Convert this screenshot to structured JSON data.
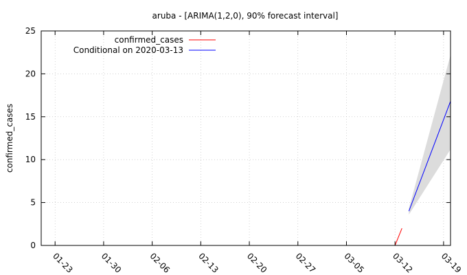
{
  "chart_data": {
    "type": "line",
    "title": "aruba -  [ARIMA(1,2,0), 90% forecast interval]",
    "xlabel": "",
    "ylabel": "confirmed_cases",
    "x_ticks": [
      "01-23",
      "01-30",
      "02-06",
      "02-13",
      "02-20",
      "02-27",
      "03-05",
      "03-12",
      "03-19"
    ],
    "x_range": [
      "2020-01-21",
      "2020-03-20"
    ],
    "ylim": [
      0,
      25
    ],
    "y_ticks": [
      0,
      5,
      10,
      15,
      20,
      25
    ],
    "grid": true,
    "legend_position": "top-left",
    "series": [
      {
        "name": "confirmed_cases",
        "color": "#ff0000",
        "points": [
          {
            "x": "2020-03-12",
            "y": 0
          },
          {
            "x": "2020-03-13",
            "y": 2
          }
        ]
      },
      {
        "name": "Conditional on 2020-03-13",
        "color": "#0000ff",
        "points": [
          {
            "x": "2020-03-14",
            "y": 4
          },
          {
            "x": "2020-03-20",
            "y": 16.8
          }
        ]
      }
    ],
    "forecast_interval": {
      "color": "#dcdcdc",
      "points": [
        {
          "x": "2020-03-14",
          "lower": 3.6,
          "upper": 4.3
        },
        {
          "x": "2020-03-20",
          "lower": 11.2,
          "upper": 22.2
        }
      ]
    }
  }
}
